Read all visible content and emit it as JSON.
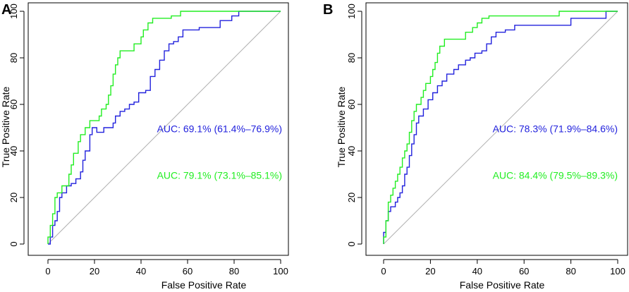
{
  "chart_data": [
    {
      "panel_label": "A",
      "type": "line",
      "xlabel": "False Positive Rate",
      "ylabel": "True Positive Rate",
      "xlim": [
        0,
        100
      ],
      "ylim": [
        0,
        100
      ],
      "xticks": [
        "0",
        "20",
        "40",
        "60",
        "80",
        "100"
      ],
      "yticks": [
        "0",
        "20",
        "40",
        "60",
        "80",
        "100"
      ],
      "colors": {
        "blue": "#2222dd",
        "green": "#22ee22",
        "diagonal": "#b0b0b0"
      },
      "annotations": [
        {
          "text": "AUC: 69.1% (61.4%–76.9%)",
          "color": "#2222dd",
          "y_value": 48
        },
        {
          "text": "AUC: 79.1% (73.1%–85.1%)",
          "color": "#22ee22",
          "y_value": 28
        }
      ],
      "series": [
        {
          "name": "blue",
          "color": "#2222dd",
          "points": [
            [
              0,
              0
            ],
            [
              1,
              0
            ],
            [
              1,
              3
            ],
            [
              2,
              3
            ],
            [
              2,
              8
            ],
            [
              3,
              8
            ],
            [
              3,
              10
            ],
            [
              4,
              10
            ],
            [
              4,
              14
            ],
            [
              5,
              14
            ],
            [
              5,
              20
            ],
            [
              6,
              20
            ],
            [
              6,
              22
            ],
            [
              8,
              22
            ],
            [
              8,
              25
            ],
            [
              10,
              25
            ],
            [
              10,
              26
            ],
            [
              12,
              26
            ],
            [
              12,
              28
            ],
            [
              14,
              28
            ],
            [
              14,
              31
            ],
            [
              15,
              31
            ],
            [
              15,
              36
            ],
            [
              16,
              36
            ],
            [
              16,
              40
            ],
            [
              18,
              40
            ],
            [
              18,
              47
            ],
            [
              19,
              47
            ],
            [
              19,
              50
            ],
            [
              21,
              50
            ],
            [
              21,
              48
            ],
            [
              24,
              48
            ],
            [
              24,
              50
            ],
            [
              28,
              50
            ],
            [
              28,
              52
            ],
            [
              29,
              52
            ],
            [
              29,
              55
            ],
            [
              31,
              55
            ],
            [
              31,
              57
            ],
            [
              33,
              57
            ],
            [
              33,
              58
            ],
            [
              35,
              58
            ],
            [
              35,
              60
            ],
            [
              37,
              60
            ],
            [
              37,
              61
            ],
            [
              39,
              61
            ],
            [
              39,
              65
            ],
            [
              42,
              65
            ],
            [
              42,
              66
            ],
            [
              44,
              66
            ],
            [
              44,
              72
            ],
            [
              46,
              72
            ],
            [
              46,
              75
            ],
            [
              48,
              75
            ],
            [
              48,
              79
            ],
            [
              50,
              79
            ],
            [
              50,
              83
            ],
            [
              52,
              83
            ],
            [
              52,
              86
            ],
            [
              54,
              86
            ],
            [
              54,
              87
            ],
            [
              56,
              87
            ],
            [
              56,
              89
            ],
            [
              58,
              89
            ],
            [
              58,
              92
            ],
            [
              65,
              92
            ],
            [
              65,
              93
            ],
            [
              74,
              93
            ],
            [
              74,
              96
            ],
            [
              79,
              96
            ],
            [
              79,
              98
            ],
            [
              82,
              98
            ],
            [
              82,
              100
            ],
            [
              100,
              100
            ]
          ]
        },
        {
          "name": "green",
          "color": "#22ee22",
          "points": [
            [
              0,
              0
            ],
            [
              0,
              3
            ],
            [
              1,
              3
            ],
            [
              1,
              8
            ],
            [
              2,
              8
            ],
            [
              2,
              13
            ],
            [
              3,
              13
            ],
            [
              3,
              20
            ],
            [
              4,
              20
            ],
            [
              4,
              22
            ],
            [
              6,
              22
            ],
            [
              6,
              25
            ],
            [
              9,
              25
            ],
            [
              9,
              30
            ],
            [
              10,
              30
            ],
            [
              10,
              34
            ],
            [
              11,
              34
            ],
            [
              11,
              39
            ],
            [
              13,
              39
            ],
            [
              13,
              44
            ],
            [
              14,
              44
            ],
            [
              14,
              47
            ],
            [
              16,
              47
            ],
            [
              16,
              50
            ],
            [
              18,
              50
            ],
            [
              18,
              53
            ],
            [
              22,
              53
            ],
            [
              22,
              55
            ],
            [
              23,
              55
            ],
            [
              23,
              58
            ],
            [
              25,
              58
            ],
            [
              25,
              60
            ],
            [
              26,
              60
            ],
            [
              26,
              64
            ],
            [
              27,
              64
            ],
            [
              27,
              68
            ],
            [
              28,
              68
            ],
            [
              28,
              73
            ],
            [
              29,
              73
            ],
            [
              29,
              77
            ],
            [
              30,
              77
            ],
            [
              30,
              80
            ],
            [
              31,
              80
            ],
            [
              31,
              83
            ],
            [
              37,
              83
            ],
            [
              37,
              86
            ],
            [
              40,
              86
            ],
            [
              40,
              89
            ],
            [
              41,
              89
            ],
            [
              41,
              92
            ],
            [
              43,
              92
            ],
            [
              43,
              95
            ],
            [
              45,
              95
            ],
            [
              45,
              97
            ],
            [
              53,
              97
            ],
            [
              53,
              98
            ],
            [
              57,
              98
            ],
            [
              57,
              100
            ],
            [
              100,
              100
            ]
          ]
        }
      ]
    },
    {
      "panel_label": "B",
      "type": "line",
      "xlabel": "False Positive Rate",
      "ylabel": "True Positive Rate",
      "xlim": [
        0,
        100
      ],
      "ylim": [
        0,
        100
      ],
      "xticks": [
        "0",
        "20",
        "40",
        "60",
        "80",
        "100"
      ],
      "yticks": [
        "0",
        "20",
        "40",
        "60",
        "80",
        "100"
      ],
      "colors": {
        "blue": "#2222dd",
        "green": "#22ee22",
        "diagonal": "#b0b0b0"
      },
      "annotations": [
        {
          "text": "AUC: 78.3% (71.9%–84.6%)",
          "color": "#2222dd",
          "y_value": 48
        },
        {
          "text": "AUC: 84.4% (79.5%–89.3%)",
          "color": "#22ee22",
          "y_value": 28
        }
      ],
      "series": [
        {
          "name": "blue",
          "color": "#2222dd",
          "points": [
            [
              0,
              0
            ],
            [
              0,
              5
            ],
            [
              1,
              5
            ],
            [
              1,
              10
            ],
            [
              2,
              10
            ],
            [
              2,
              14
            ],
            [
              3,
              14
            ],
            [
              3,
              16
            ],
            [
              5,
              16
            ],
            [
              5,
              18
            ],
            [
              6,
              18
            ],
            [
              6,
              20
            ],
            [
              7,
              20
            ],
            [
              7,
              22
            ],
            [
              8,
              22
            ],
            [
              8,
              25
            ],
            [
              9,
              25
            ],
            [
              9,
              30
            ],
            [
              10,
              30
            ],
            [
              10,
              33
            ],
            [
              11,
              33
            ],
            [
              11,
              38
            ],
            [
              12,
              38
            ],
            [
              12,
              43
            ],
            [
              13,
              43
            ],
            [
              13,
              47
            ],
            [
              14,
              47
            ],
            [
              14,
              52
            ],
            [
              15,
              52
            ],
            [
              15,
              55
            ],
            [
              17,
              55
            ],
            [
              17,
              58
            ],
            [
              19,
              58
            ],
            [
              19,
              62
            ],
            [
              21,
              62
            ],
            [
              21,
              65
            ],
            [
              23,
              65
            ],
            [
              23,
              68
            ],
            [
              25,
              68
            ],
            [
              25,
              70
            ],
            [
              27,
              70
            ],
            [
              27,
              73
            ],
            [
              30,
              73
            ],
            [
              30,
              75
            ],
            [
              32,
              75
            ],
            [
              32,
              77
            ],
            [
              35,
              77
            ],
            [
              35,
              79
            ],
            [
              37,
              79
            ],
            [
              37,
              80
            ],
            [
              39,
              80
            ],
            [
              39,
              82
            ],
            [
              42,
              82
            ],
            [
              42,
              83
            ],
            [
              44,
              83
            ],
            [
              44,
              86
            ],
            [
              46,
              86
            ],
            [
              46,
              89
            ],
            [
              48,
              89
            ],
            [
              48,
              91
            ],
            [
              52,
              91
            ],
            [
              52,
              92
            ],
            [
              56,
              92
            ],
            [
              56,
              94
            ],
            [
              80,
              94
            ],
            [
              80,
              97
            ],
            [
              95,
              97
            ],
            [
              95,
              100
            ],
            [
              100,
              100
            ]
          ]
        },
        {
          "name": "green",
          "color": "#22ee22",
          "points": [
            [
              0,
              0
            ],
            [
              0,
              3
            ],
            [
              1,
              3
            ],
            [
              1,
              10
            ],
            [
              2,
              10
            ],
            [
              2,
              18
            ],
            [
              3,
              18
            ],
            [
              3,
              21
            ],
            [
              4,
              21
            ],
            [
              4,
              24
            ],
            [
              5,
              24
            ],
            [
              5,
              27
            ],
            [
              6,
              27
            ],
            [
              6,
              30
            ],
            [
              7,
              30
            ],
            [
              7,
              33
            ],
            [
              8,
              33
            ],
            [
              8,
              37
            ],
            [
              9,
              37
            ],
            [
              9,
              40
            ],
            [
              10,
              40
            ],
            [
              10,
              43
            ],
            [
              11,
              43
            ],
            [
              11,
              48
            ],
            [
              12,
              48
            ],
            [
              12,
              53
            ],
            [
              13,
              53
            ],
            [
              13,
              57
            ],
            [
              14,
              57
            ],
            [
              14,
              60
            ],
            [
              16,
              60
            ],
            [
              16,
              63
            ],
            [
              17,
              63
            ],
            [
              17,
              66
            ],
            [
              18,
              66
            ],
            [
              18,
              69
            ],
            [
              20,
              69
            ],
            [
              20,
              72
            ],
            [
              21,
              72
            ],
            [
              21,
              75
            ],
            [
              22,
              75
            ],
            [
              22,
              78
            ],
            [
              23,
              78
            ],
            [
              23,
              82
            ],
            [
              24,
              82
            ],
            [
              24,
              85
            ],
            [
              26,
              85
            ],
            [
              26,
              88
            ],
            [
              35,
              88
            ],
            [
              35,
              91
            ],
            [
              38,
              91
            ],
            [
              38,
              93
            ],
            [
              40,
              93
            ],
            [
              40,
              95
            ],
            [
              42,
              95
            ],
            [
              42,
              97
            ],
            [
              45,
              97
            ],
            [
              45,
              98
            ],
            [
              75,
              98
            ],
            [
              75,
              100
            ],
            [
              100,
              100
            ]
          ]
        }
      ]
    }
  ]
}
